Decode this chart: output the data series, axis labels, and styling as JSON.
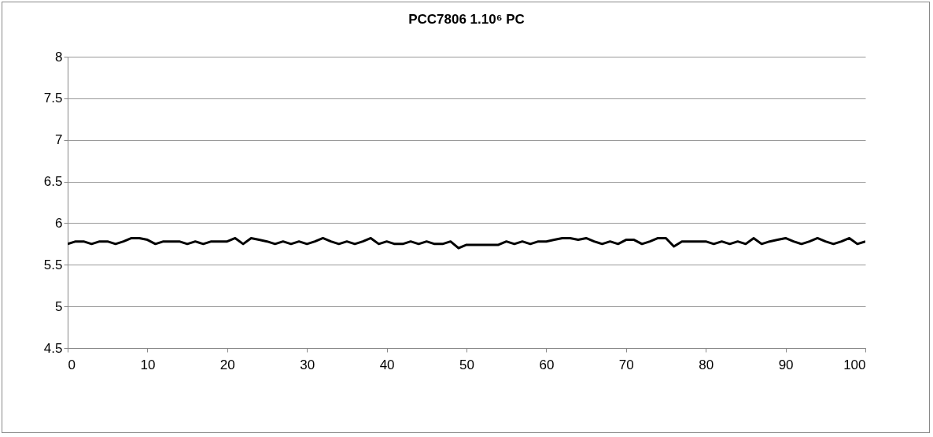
{
  "chart_data": {
    "type": "line",
    "title": "PCC7806 1.10⁶ PC",
    "x": [
      0,
      1,
      2,
      3,
      4,
      5,
      6,
      7,
      8,
      9,
      10,
      11,
      12,
      13,
      14,
      15,
      16,
      17,
      18,
      19,
      20,
      21,
      22,
      23,
      24,
      25,
      26,
      27,
      28,
      29,
      30,
      31,
      32,
      33,
      34,
      35,
      36,
      37,
      38,
      39,
      40,
      41,
      42,
      43,
      44,
      45,
      46,
      47,
      48,
      49,
      50,
      51,
      52,
      53,
      54,
      55,
      56,
      57,
      58,
      59,
      60,
      61,
      62,
      63,
      64,
      65,
      66,
      67,
      68,
      69,
      70,
      71,
      72,
      73,
      74,
      75,
      76,
      77,
      78,
      79,
      80,
      81,
      82,
      83,
      84,
      85,
      86,
      87,
      88,
      89,
      90,
      91,
      92,
      93,
      94,
      95,
      96,
      97,
      98,
      99,
      100
    ],
    "series": [
      {
        "color": "#000000",
        "values": [
          5.75,
          5.78,
          5.78,
          5.75,
          5.78,
          5.78,
          5.75,
          5.78,
          5.82,
          5.82,
          5.8,
          5.75,
          5.78,
          5.78,
          5.78,
          5.75,
          5.78,
          5.75,
          5.78,
          5.78,
          5.78,
          5.82,
          5.75,
          5.82,
          5.8,
          5.78,
          5.75,
          5.78,
          5.75,
          5.78,
          5.75,
          5.78,
          5.82,
          5.78,
          5.75,
          5.78,
          5.75,
          5.78,
          5.82,
          5.75,
          5.78,
          5.75,
          5.75,
          5.78,
          5.75,
          5.78,
          5.75,
          5.75,
          5.78,
          5.7,
          5.74,
          5.74,
          5.74,
          5.74,
          5.74,
          5.78,
          5.75,
          5.78,
          5.75,
          5.78,
          5.78,
          5.8,
          5.82,
          5.82,
          5.8,
          5.82,
          5.78,
          5.75,
          5.78,
          5.75,
          5.8,
          5.8,
          5.75,
          5.78,
          5.82,
          5.82,
          5.72,
          5.78,
          5.78,
          5.78,
          5.78,
          5.75,
          5.78,
          5.75,
          5.78,
          5.75,
          5.82,
          5.75,
          5.78,
          5.8,
          5.82,
          5.78,
          5.75,
          5.78,
          5.82,
          5.78,
          5.75,
          5.78,
          5.82,
          5.75,
          5.78
        ]
      }
    ],
    "xlim": [
      0,
      100
    ],
    "xticks": [
      0,
      10,
      20,
      30,
      40,
      50,
      60,
      70,
      80,
      90,
      100
    ],
    "ylim": [
      4.5,
      8
    ],
    "yticks": [
      4.5,
      5,
      5.5,
      6,
      6.5,
      7,
      7.5,
      8
    ],
    "grid": "y"
  }
}
